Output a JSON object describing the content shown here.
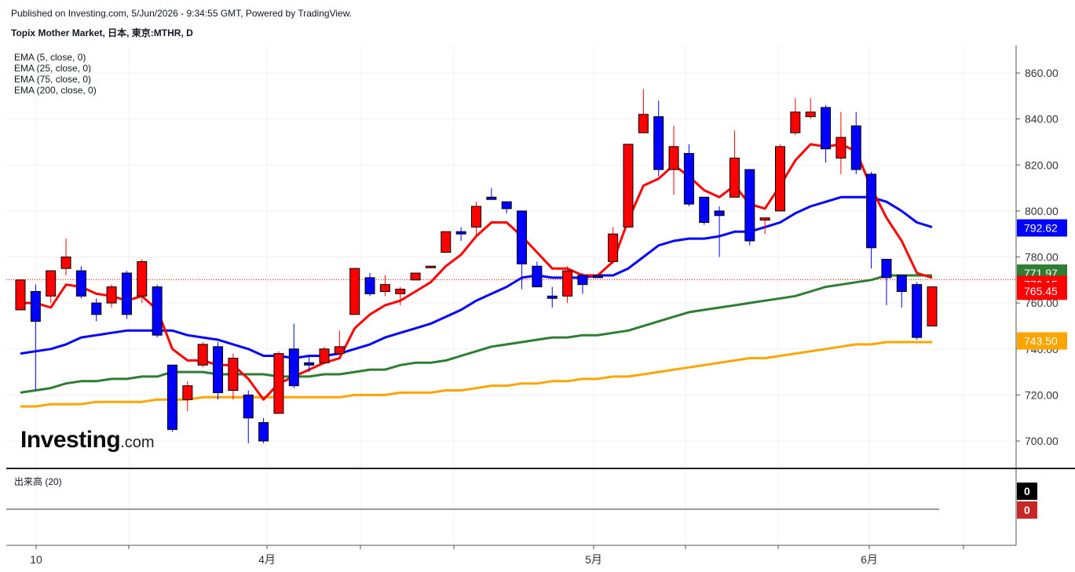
{
  "header": {
    "published": "Published on Investing.com, 5/Jun/2026 - 9:34:55 GMT, Powered by TradingView.",
    "symbol": "Topix Mother Market, 日本, 東京:MTHR, D"
  },
  "legend": {
    "ema": [
      "EMA (5, close, 0)",
      "EMA (25, close, 0)",
      "EMA (75, close, 0)",
      "EMA (200, close, 0)"
    ],
    "volume": "出来高 (20)"
  },
  "logo": {
    "main": "Investing",
    "suffix": ".com"
  },
  "chart_data": {
    "type": "candlestick",
    "ylim": [
      690,
      870
    ],
    "y_ticks": [
      "700.00",
      "720.00",
      "740.00",
      "760.00",
      "780.00",
      "800.00",
      "820.00",
      "840.00",
      "860.00"
    ],
    "x_ticks": [
      "10",
      "4月",
      "5月",
      "6月"
    ],
    "colors": {
      "up": "#ff0000",
      "down": "#0000ff",
      "ema5": "#ff0000",
      "ema25": "#0000ff",
      "ema75": "#2e7d32",
      "ema200": "#ffa500"
    },
    "candles": [
      {
        "o": 757,
        "h": 770,
        "l": 757,
        "c": 770
      },
      {
        "o": 765,
        "h": 768,
        "l": 722,
        "c": 752
      },
      {
        "o": 763,
        "h": 774,
        "l": 760,
        "c": 774
      },
      {
        "o": 775,
        "h": 788,
        "l": 772,
        "c": 780
      },
      {
        "o": 774,
        "h": 776,
        "l": 762,
        "c": 763
      },
      {
        "o": 760,
        "h": 762,
        "l": 752,
        "c": 755
      },
      {
        "o": 760,
        "h": 768,
        "l": 758,
        "c": 767
      },
      {
        "o": 773,
        "h": 774,
        "l": 753,
        "c": 755
      },
      {
        "o": 763,
        "h": 779,
        "l": 760,
        "c": 778
      },
      {
        "o": 767,
        "h": 768,
        "l": 745,
        "c": 746
      },
      {
        "o": 733,
        "h": 733,
        "l": 704,
        "c": 705
      },
      {
        "o": 718,
        "h": 726,
        "l": 713,
        "c": 724
      },
      {
        "o": 733,
        "h": 743,
        "l": 732,
        "c": 742
      },
      {
        "o": 741,
        "h": 743,
        "l": 718,
        "c": 721
      },
      {
        "o": 722,
        "h": 738,
        "l": 718,
        "c": 736
      },
      {
        "o": 720,
        "h": 722,
        "l": 699,
        "c": 710
      },
      {
        "o": 708,
        "h": 710,
        "l": 699,
        "c": 700
      },
      {
        "o": 712,
        "h": 739,
        "l": 712,
        "c": 738
      },
      {
        "o": 740,
        "h": 751,
        "l": 723,
        "c": 724
      },
      {
        "o": 734,
        "h": 737,
        "l": 730,
        "c": 733
      },
      {
        "o": 734,
        "h": 741,
        "l": 735,
        "c": 740
      },
      {
        "o": 738,
        "h": 748,
        "l": 738,
        "c": 741
      },
      {
        "o": 755,
        "h": 775,
        "l": 755,
        "c": 775
      },
      {
        "o": 771,
        "h": 773,
        "l": 763,
        "c": 764
      },
      {
        "o": 765,
        "h": 772,
        "l": 763,
        "c": 768
      },
      {
        "o": 764,
        "h": 767,
        "l": 759,
        "c": 766
      },
      {
        "o": 770,
        "h": 772,
        "l": 770,
        "c": 773
      },
      {
        "o": 776,
        "h": 776,
        "l": 775,
        "c": 776
      },
      {
        "o": 782,
        "h": 791,
        "l": 782,
        "c": 791
      },
      {
        "o": 791,
        "h": 793,
        "l": 787,
        "c": 790
      },
      {
        "o": 793,
        "h": 804,
        "l": 789,
        "c": 802
      },
      {
        "o": 806,
        "h": 810,
        "l": 805,
        "c": 805
      },
      {
        "o": 804,
        "h": 804,
        "l": 799,
        "c": 801
      },
      {
        "o": 800,
        "h": 800,
        "l": 766,
        "c": 777
      },
      {
        "o": 776,
        "h": 778,
        "l": 768,
        "c": 767
      },
      {
        "o": 763,
        "h": 767,
        "l": 758,
        "c": 762
      },
      {
        "o": 763,
        "h": 776,
        "l": 760,
        "c": 774
      },
      {
        "o": 772,
        "h": 773,
        "l": 764,
        "c": 768
      },
      {
        "o": 772,
        "h": 772,
        "l": 771,
        "c": 771
      },
      {
        "o": 778,
        "h": 793,
        "l": 777,
        "c": 790
      },
      {
        "o": 793,
        "h": 829,
        "l": 793,
        "c": 829
      },
      {
        "o": 834,
        "h": 853,
        "l": 834,
        "c": 842
      },
      {
        "o": 841,
        "h": 848,
        "l": 815,
        "c": 818
      },
      {
        "o": 818,
        "h": 837,
        "l": 807,
        "c": 828
      },
      {
        "o": 825,
        "h": 829,
        "l": 802,
        "c": 803
      },
      {
        "o": 806,
        "h": 806,
        "l": 794,
        "c": 795
      },
      {
        "o": 800,
        "h": 802,
        "l": 780,
        "c": 798
      },
      {
        "o": 806,
        "h": 835,
        "l": 806,
        "c": 823
      },
      {
        "o": 818,
        "h": 818,
        "l": 785,
        "c": 787
      },
      {
        "o": 796,
        "h": 797,
        "l": 790,
        "c": 797
      },
      {
        "o": 800,
        "h": 829,
        "l": 800,
        "c": 828
      },
      {
        "o": 834,
        "h": 849,
        "l": 833,
        "c": 843
      },
      {
        "o": 841,
        "h": 849,
        "l": 840,
        "c": 843
      },
      {
        "o": 845,
        "h": 846,
        "l": 821,
        "c": 827
      },
      {
        "o": 823,
        "h": 843,
        "l": 816,
        "c": 832
      },
      {
        "o": 837,
        "h": 843,
        "l": 816,
        "c": 818
      },
      {
        "o": 816,
        "h": 817,
        "l": 775,
        "c": 784
      },
      {
        "o": 779,
        "h": 778,
        "l": 759,
        "c": 771
      },
      {
        "o": 772,
        "h": 772,
        "l": 758,
        "c": 765
      },
      {
        "o": 768,
        "h": 769,
        "l": 744,
        "c": 745
      },
      {
        "o": 750,
        "h": 767,
        "l": 750,
        "c": 767
      }
    ],
    "ema5": [
      760,
      760,
      758,
      768,
      767,
      764,
      763,
      761,
      763,
      757,
      740,
      735,
      735,
      733,
      733,
      727,
      718,
      725,
      728,
      731,
      734,
      736,
      749,
      755,
      759,
      761,
      765,
      769,
      776,
      781,
      789,
      795,
      795,
      789,
      782,
      775,
      775,
      772,
      772,
      778,
      796,
      811,
      814,
      820,
      815,
      809,
      806,
      811,
      803,
      801,
      811,
      822,
      829,
      828,
      829,
      826,
      810,
      797,
      787,
      773,
      771
    ],
    "ema25": [
      738,
      739,
      740,
      742,
      745,
      746,
      747,
      748,
      748,
      748,
      748,
      746,
      745,
      744,
      742,
      740,
      737,
      737,
      736,
      737,
      737,
      738,
      740,
      742,
      745,
      747,
      749,
      751,
      754,
      757,
      761,
      764,
      767,
      771,
      772,
      771,
      771,
      771,
      772,
      772,
      775,
      780,
      785,
      787,
      788,
      788,
      789,
      791,
      791,
      793,
      795,
      799,
      802,
      804,
      806,
      806,
      806,
      804,
      800,
      795,
      793
    ],
    "ema75": [
      721,
      722,
      723,
      725,
      726,
      726,
      727,
      727,
      728,
      728,
      730,
      730,
      730,
      729,
      729,
      729,
      729,
      728,
      728,
      728,
      729,
      729,
      730,
      731,
      731,
      733,
      734,
      734,
      735,
      737,
      739,
      741,
      742,
      743,
      744,
      745,
      745,
      746,
      746,
      747,
      748,
      750,
      752,
      754,
      756,
      757,
      758,
      759,
      760,
      761,
      762,
      763,
      765,
      767,
      768,
      769,
      770,
      772,
      772,
      772,
      772
    ],
    "ema200": [
      715,
      715,
      716,
      716,
      716,
      717,
      717,
      717,
      717,
      718,
      718,
      718,
      719,
      719,
      719,
      719,
      719,
      719,
      719,
      719,
      719,
      719,
      720,
      720,
      720,
      721,
      721,
      721,
      722,
      722,
      723,
      724,
      724,
      725,
      725,
      726,
      726,
      727,
      727,
      728,
      728,
      729,
      730,
      731,
      732,
      733,
      734,
      735,
      736,
      736,
      737,
      738,
      739,
      740,
      741,
      742,
      742,
      743,
      743,
      743,
      743
    ],
    "last_labels": [
      {
        "value": "792.62",
        "y": 792.62,
        "color": "#0000ff"
      },
      {
        "value": "771.97",
        "y": 771.97,
        "color": "#2e7d32"
      },
      {
        "value": "770.15",
        "y": 770.15,
        "color": "#ff0000"
      },
      {
        "value": "765.45",
        "y": 765.45,
        "color": "#ff0000"
      },
      {
        "value": "743.50",
        "y": 743.5,
        "color": "#ffa500"
      }
    ],
    "price_line": 770.15,
    "volume_labels": [
      {
        "value": "0",
        "color": "#000000"
      },
      {
        "value": "0",
        "color": "#c62828"
      }
    ]
  }
}
